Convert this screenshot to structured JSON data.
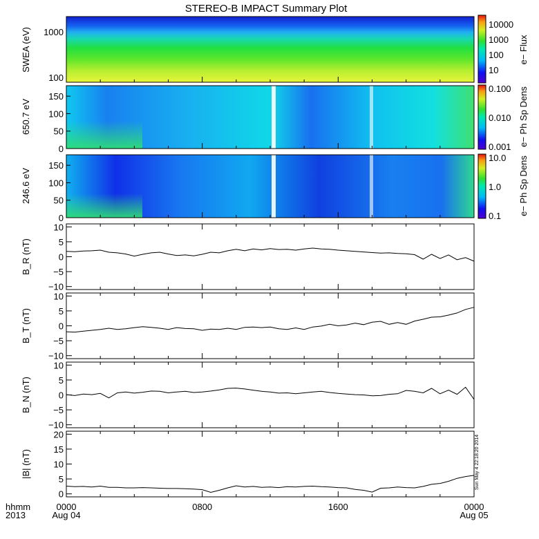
{
  "title": "STEREO-B IMPACT Summary Plot",
  "footer": {
    "row1_label": "hhmm",
    "row2_label": "2013",
    "date_start": "Aug 04",
    "date_end": "Aug 05",
    "x_ticks": [
      "0000",
      "0800",
      "1600",
      "0000"
    ]
  },
  "timestamp": "Sun May  4 22:18:20 2014",
  "colorbars": [
    {
      "ticks": [
        "10000",
        "1000",
        "100",
        "10"
      ],
      "label": "e− Flux"
    },
    {
      "ticks": [
        "0.100",
        "0.010",
        "0.001"
      ],
      "label": "e− Ph Sp Dens"
    },
    {
      "ticks": [
        "10.0",
        "1.0",
        "0.1"
      ],
      "label": "e− Ph Sp Dens"
    }
  ],
  "colors": {
    "line": "#000000",
    "gap": "#ffffff"
  },
  "chart_data": [
    {
      "type": "heatmap",
      "ylabel": "SWEA (eV)",
      "y_ticks": [
        "1000",
        "100"
      ],
      "ylim": [
        90,
        2000
      ],
      "y_scale": "log",
      "xlim": [
        0,
        24
      ],
      "colorbar_label": "e− Flux",
      "colorbar_range": [
        3,
        30000
      ],
      "colorbar_scale": "log",
      "description_of_field": "flux decreases with energy: ~10000 at 100 eV, ~1000 at ~350 eV, ~100 at ~800 eV, ~10 near 2000 eV"
    },
    {
      "type": "heatmap",
      "ylabel": "650.7 eV",
      "y_ticks": [
        "150",
        "100",
        "50",
        "0"
      ],
      "ylim": [
        0,
        180
      ],
      "xlim": [
        0,
        24
      ],
      "colorbar_label": "e− Ph Sp Dens",
      "colorbar_range": [
        0.001,
        0.1
      ],
      "colorbar_scale": "log",
      "data_gaps_hours": [
        12.0,
        17.9
      ]
    },
    {
      "type": "heatmap",
      "ylabel": "246.6 eV",
      "y_ticks": [
        "150",
        "100",
        "50",
        "0"
      ],
      "ylim": [
        0,
        180
      ],
      "xlim": [
        0,
        24
      ],
      "colorbar_label": "e− Ph Sp Dens",
      "colorbar_range": [
        0.1,
        10
      ],
      "colorbar_scale": "log",
      "data_gaps_hours": [
        12.0,
        17.9
      ]
    },
    {
      "type": "line",
      "ylabel": "B_R (nT)",
      "ylim": [
        -11,
        11
      ],
      "y_ticks": [
        "10",
        "5",
        "0",
        "−5",
        "−10"
      ],
      "y_tick_values": [
        10,
        5,
        0,
        -5,
        -10
      ],
      "xlim": [
        0,
        24
      ],
      "x": [
        0,
        0.5,
        1,
        1.5,
        2,
        2.5,
        3,
        3.5,
        4,
        4.5,
        5,
        5.5,
        6,
        6.5,
        7,
        7.5,
        8,
        8.5,
        9,
        9.5,
        10,
        10.5,
        11,
        11.5,
        12,
        12.5,
        13,
        13.5,
        14,
        14.5,
        15,
        15.5,
        16,
        16.5,
        17,
        17.5,
        18,
        18.5,
        19,
        19.5,
        20,
        20.5,
        21,
        21.5,
        22,
        22.5,
        23,
        23.5,
        24
      ],
      "y": [
        1.8,
        1.7,
        1.9,
        2.0,
        2.2,
        1.5,
        1.3,
        0.9,
        0.2,
        0.8,
        1.3,
        1.5,
        0.9,
        0.4,
        0.6,
        0.3,
        0.8,
        1.5,
        1.3,
        2.0,
        2.5,
        2.0,
        2.6,
        2.3,
        2.7,
        2.4,
        2.5,
        2.2,
        2.6,
        2.9,
        2.6,
        2.5,
        2.2,
        2.0,
        1.8,
        1.6,
        1.4,
        1.2,
        1.3,
        1.1,
        1.0,
        0.7,
        -0.8,
        0.8,
        -0.6,
        0.6,
        -1.0,
        -0.3,
        -1.5
      ]
    },
    {
      "type": "line",
      "ylabel": "B_T (nT)",
      "ylim": [
        -11,
        11
      ],
      "y_ticks": [
        "10",
        "5",
        "0",
        "−5",
        "−10"
      ],
      "y_tick_values": [
        10,
        5,
        0,
        -5,
        -10
      ],
      "xlim": [
        0,
        24
      ],
      "x": [
        0,
        0.5,
        1,
        1.5,
        2,
        2.5,
        3,
        3.5,
        4,
        4.5,
        5,
        5.5,
        6,
        6.5,
        7,
        7.5,
        8,
        8.5,
        9,
        9.5,
        10,
        10.5,
        11,
        11.5,
        12,
        12.5,
        13,
        13.5,
        14,
        14.5,
        15,
        15.5,
        16,
        16.5,
        17,
        17.5,
        18,
        18.5,
        19,
        19.5,
        20,
        20.5,
        21,
        21.5,
        22,
        22.5,
        23,
        23.5,
        24
      ],
      "y": [
        -2.0,
        -2.1,
        -1.8,
        -1.5,
        -1.2,
        -0.8,
        -1.2,
        -1.0,
        -0.6,
        -0.3,
        -0.5,
        -0.8,
        -1.2,
        -0.6,
        -0.9,
        -1.0,
        -1.5,
        -1.1,
        -1.2,
        -0.8,
        -1.2,
        -0.5,
        -0.4,
        -0.6,
        -0.4,
        -1.0,
        -1.2,
        -0.7,
        -1.2,
        -0.4,
        -0.1,
        0.5,
        0.0,
        0.3,
        0.9,
        0.4,
        1.2,
        1.5,
        0.5,
        1.1,
        0.5,
        1.6,
        2.2,
        2.9,
        3.0,
        3.6,
        4.3,
        5.5,
        6.2
      ]
    },
    {
      "type": "line",
      "ylabel": "B_N (nT)",
      "ylim": [
        -11,
        11
      ],
      "y_ticks": [
        "10",
        "5",
        "0",
        "−5",
        "−10"
      ],
      "y_tick_values": [
        10,
        5,
        0,
        -5,
        -10
      ],
      "xlim": [
        0,
        24
      ],
      "x": [
        0,
        0.5,
        1,
        1.5,
        2,
        2.5,
        3,
        3.5,
        4,
        4.5,
        5,
        5.5,
        6,
        6.5,
        7,
        7.5,
        8,
        8.5,
        9,
        9.5,
        10,
        10.5,
        11,
        11.5,
        12,
        12.5,
        13,
        13.5,
        14,
        14.5,
        15,
        15.5,
        16,
        16.5,
        17,
        17.5,
        18,
        18.5,
        19,
        19.5,
        20,
        20.5,
        21,
        21.5,
        22,
        22.5,
        23,
        23.5,
        24
      ],
      "y": [
        0.1,
        -0.2,
        0.3,
        0.1,
        0.5,
        -1.0,
        0.7,
        1.0,
        0.6,
        0.9,
        1.3,
        1.2,
        0.7,
        1.0,
        1.2,
        0.8,
        1.0,
        1.3,
        1.7,
        2.2,
        2.3,
        2.0,
        1.6,
        1.2,
        1.0,
        0.6,
        0.7,
        0.4,
        0.7,
        1.0,
        1.2,
        0.8,
        0.5,
        0.3,
        0.1,
        0.0,
        -0.3,
        -0.2,
        0.2,
        0.4,
        1.5,
        1.2,
        0.7,
        2.2,
        0.4,
        1.6,
        0.2,
        2.6,
        -1.5
      ]
    },
    {
      "type": "line",
      "ylabel": "|B| (nT)",
      "ylim": [
        -1,
        21
      ],
      "y_ticks": [
        "20",
        "15",
        "10",
        "5",
        "0"
      ],
      "y_tick_values": [
        20,
        15,
        10,
        5,
        0
      ],
      "xlim": [
        0,
        24
      ],
      "x": [
        0,
        0.5,
        1,
        1.5,
        2,
        2.5,
        3,
        3.5,
        4,
        4.5,
        5,
        5.5,
        6,
        6.5,
        7,
        7.5,
        8,
        8.5,
        9,
        9.5,
        10,
        10.5,
        11,
        11.5,
        12,
        12.5,
        13,
        13.5,
        14,
        14.5,
        15,
        15.5,
        16,
        16.5,
        17,
        17.5,
        18,
        18.5,
        19,
        19.5,
        20,
        20.5,
        21,
        21.5,
        22,
        22.5,
        23,
        23.5,
        24
      ],
      "y": [
        2.6,
        2.4,
        2.5,
        2.3,
        2.6,
        2.2,
        2.2,
        2.0,
        2.0,
        2.1,
        2.0,
        1.9,
        1.8,
        1.8,
        1.7,
        1.6,
        1.4,
        0.5,
        1.2,
        2.0,
        2.7,
        2.3,
        2.5,
        2.2,
        2.3,
        2.1,
        2.4,
        2.3,
        2.5,
        2.6,
        2.4,
        2.3,
        2.1,
        2.0,
        1.5,
        1.2,
        0.6,
        1.9,
        2.0,
        2.3,
        2.1,
        2.0,
        2.5,
        3.2,
        3.5,
        4.2,
        5.2,
        5.8,
        6.2
      ]
    }
  ]
}
